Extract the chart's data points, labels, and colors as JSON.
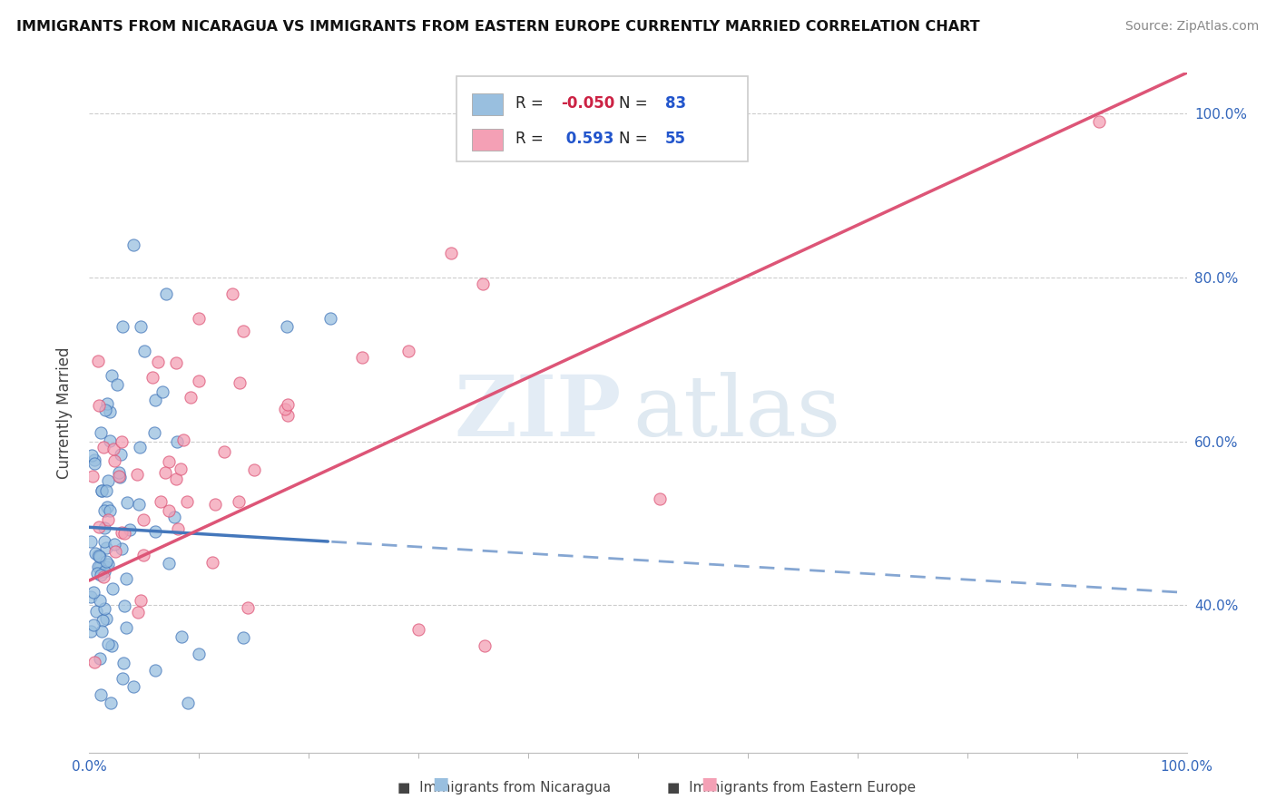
{
  "title": "IMMIGRANTS FROM NICARAGUA VS IMMIGRANTS FROM EASTERN EUROPE CURRENTLY MARRIED CORRELATION CHART",
  "source": "Source: ZipAtlas.com",
  "ylabel": "Currently Married",
  "ytick_labels": [
    "40.0%",
    "60.0%",
    "80.0%",
    "100.0%"
  ],
  "ytick_values": [
    0.4,
    0.6,
    0.8,
    1.0
  ],
  "xtick_labels": [
    "0.0%",
    "100.0%"
  ],
  "xtick_values": [
    0.0,
    1.0
  ],
  "legend_row1_R": "-0.050",
  "legend_row1_N": "83",
  "legend_row2_R": "0.593",
  "legend_row2_N": "55",
  "series1_color": "#99bfdf",
  "series2_color": "#f4a0b5",
  "trend1_color": "#4477bb",
  "trend2_color": "#dd5577",
  "R1": -0.05,
  "N1": 83,
  "R2": 0.593,
  "N2": 55,
  "background_color": "#ffffff",
  "grid_color": "#cccccc",
  "bottom_label1": "Immigrants from Nicaragua",
  "bottom_label2": "Immigrants from Eastern Europe",
  "ylim_low": 0.22,
  "ylim_high": 1.05
}
